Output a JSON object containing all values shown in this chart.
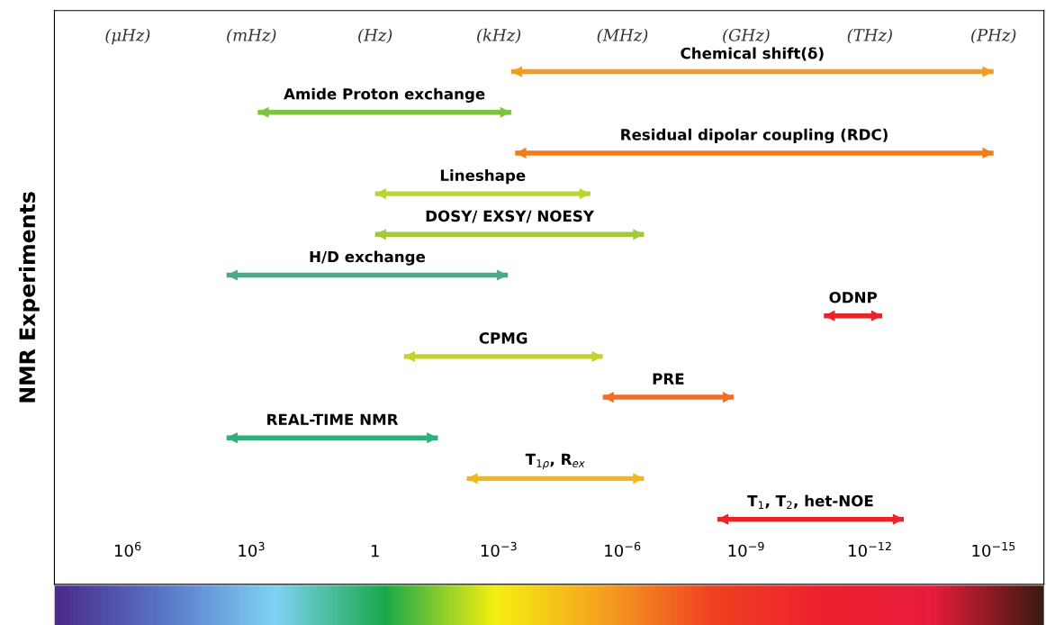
{
  "chart_data": {
    "type": "bar",
    "orientation": "horizontal",
    "ylabel": "NMR Experiments",
    "categories": [
      "Chemical shift(δ)",
      "Amide Proton exchange",
      "Residual dipolar coupling (RDC)",
      "Lineshape",
      "DOSY/ EXSY/ NOESY",
      "H/D exchange",
      "ODNP",
      "CPMG",
      "PRE",
      "REAL-TIME NMR",
      "T$_{1ρ}$, R$_{ex}$",
      "T$_{1}$, T$_{2}$, het-NOE"
    ],
    "base": [
      0.0005,
      700,
      0.0004,
      1,
      1,
      4000,
      1.3e-11,
      0.2,
      3e-06,
      4000,
      0.006,
      5e-09
    ],
    "values": [
      -0.000499999999999,
      -699.9995,
      -0.000399999999999,
      -0.999994,
      -0.9999997,
      -3999.9994,
      -1.25e-11,
      -0.199997,
      -2.998e-06,
      -3999.97,
      -0.0059997,
      -4.99985e-09
    ],
    "colors": [
      "#f39c1e",
      "#7dc242",
      "#f07d1a",
      "#b9d630",
      "#a5c83a",
      "#4aaa8c",
      "#e8262a",
      "#c4d22c",
      "#f07023",
      "#2fb07a",
      "#f0b81e",
      "#e8262a"
    ],
    "log": "x",
    "xlim": [
      60000000,
      6e-17
    ],
    "xticks": [
      {
        "value": 1000000,
        "label": "10$^{6}$"
      },
      {
        "value": 1000,
        "label": "10$^{3}$"
      },
      1,
      {
        "value": 0.001,
        "label": "10$^{−3}$"
      },
      {
        "value": 1e-06,
        "label": "10$^{−6}$"
      },
      {
        "value": 1e-09,
        "label": "10$^{−9}$"
      },
      {
        "value": 1e-12,
        "label": "10$^{−12}$"
      },
      {
        "value": 1e-15,
        "label": "10$^{−15}$"
      }
    ],
    "annotations": [
      "(μHz)",
      "(mHz)",
      "(Hz)",
      "(kHz)",
      "(MHz)",
      "(GHz)",
      "(THz)",
      "(PHz)"
    ],
    "grid": false
  }
}
